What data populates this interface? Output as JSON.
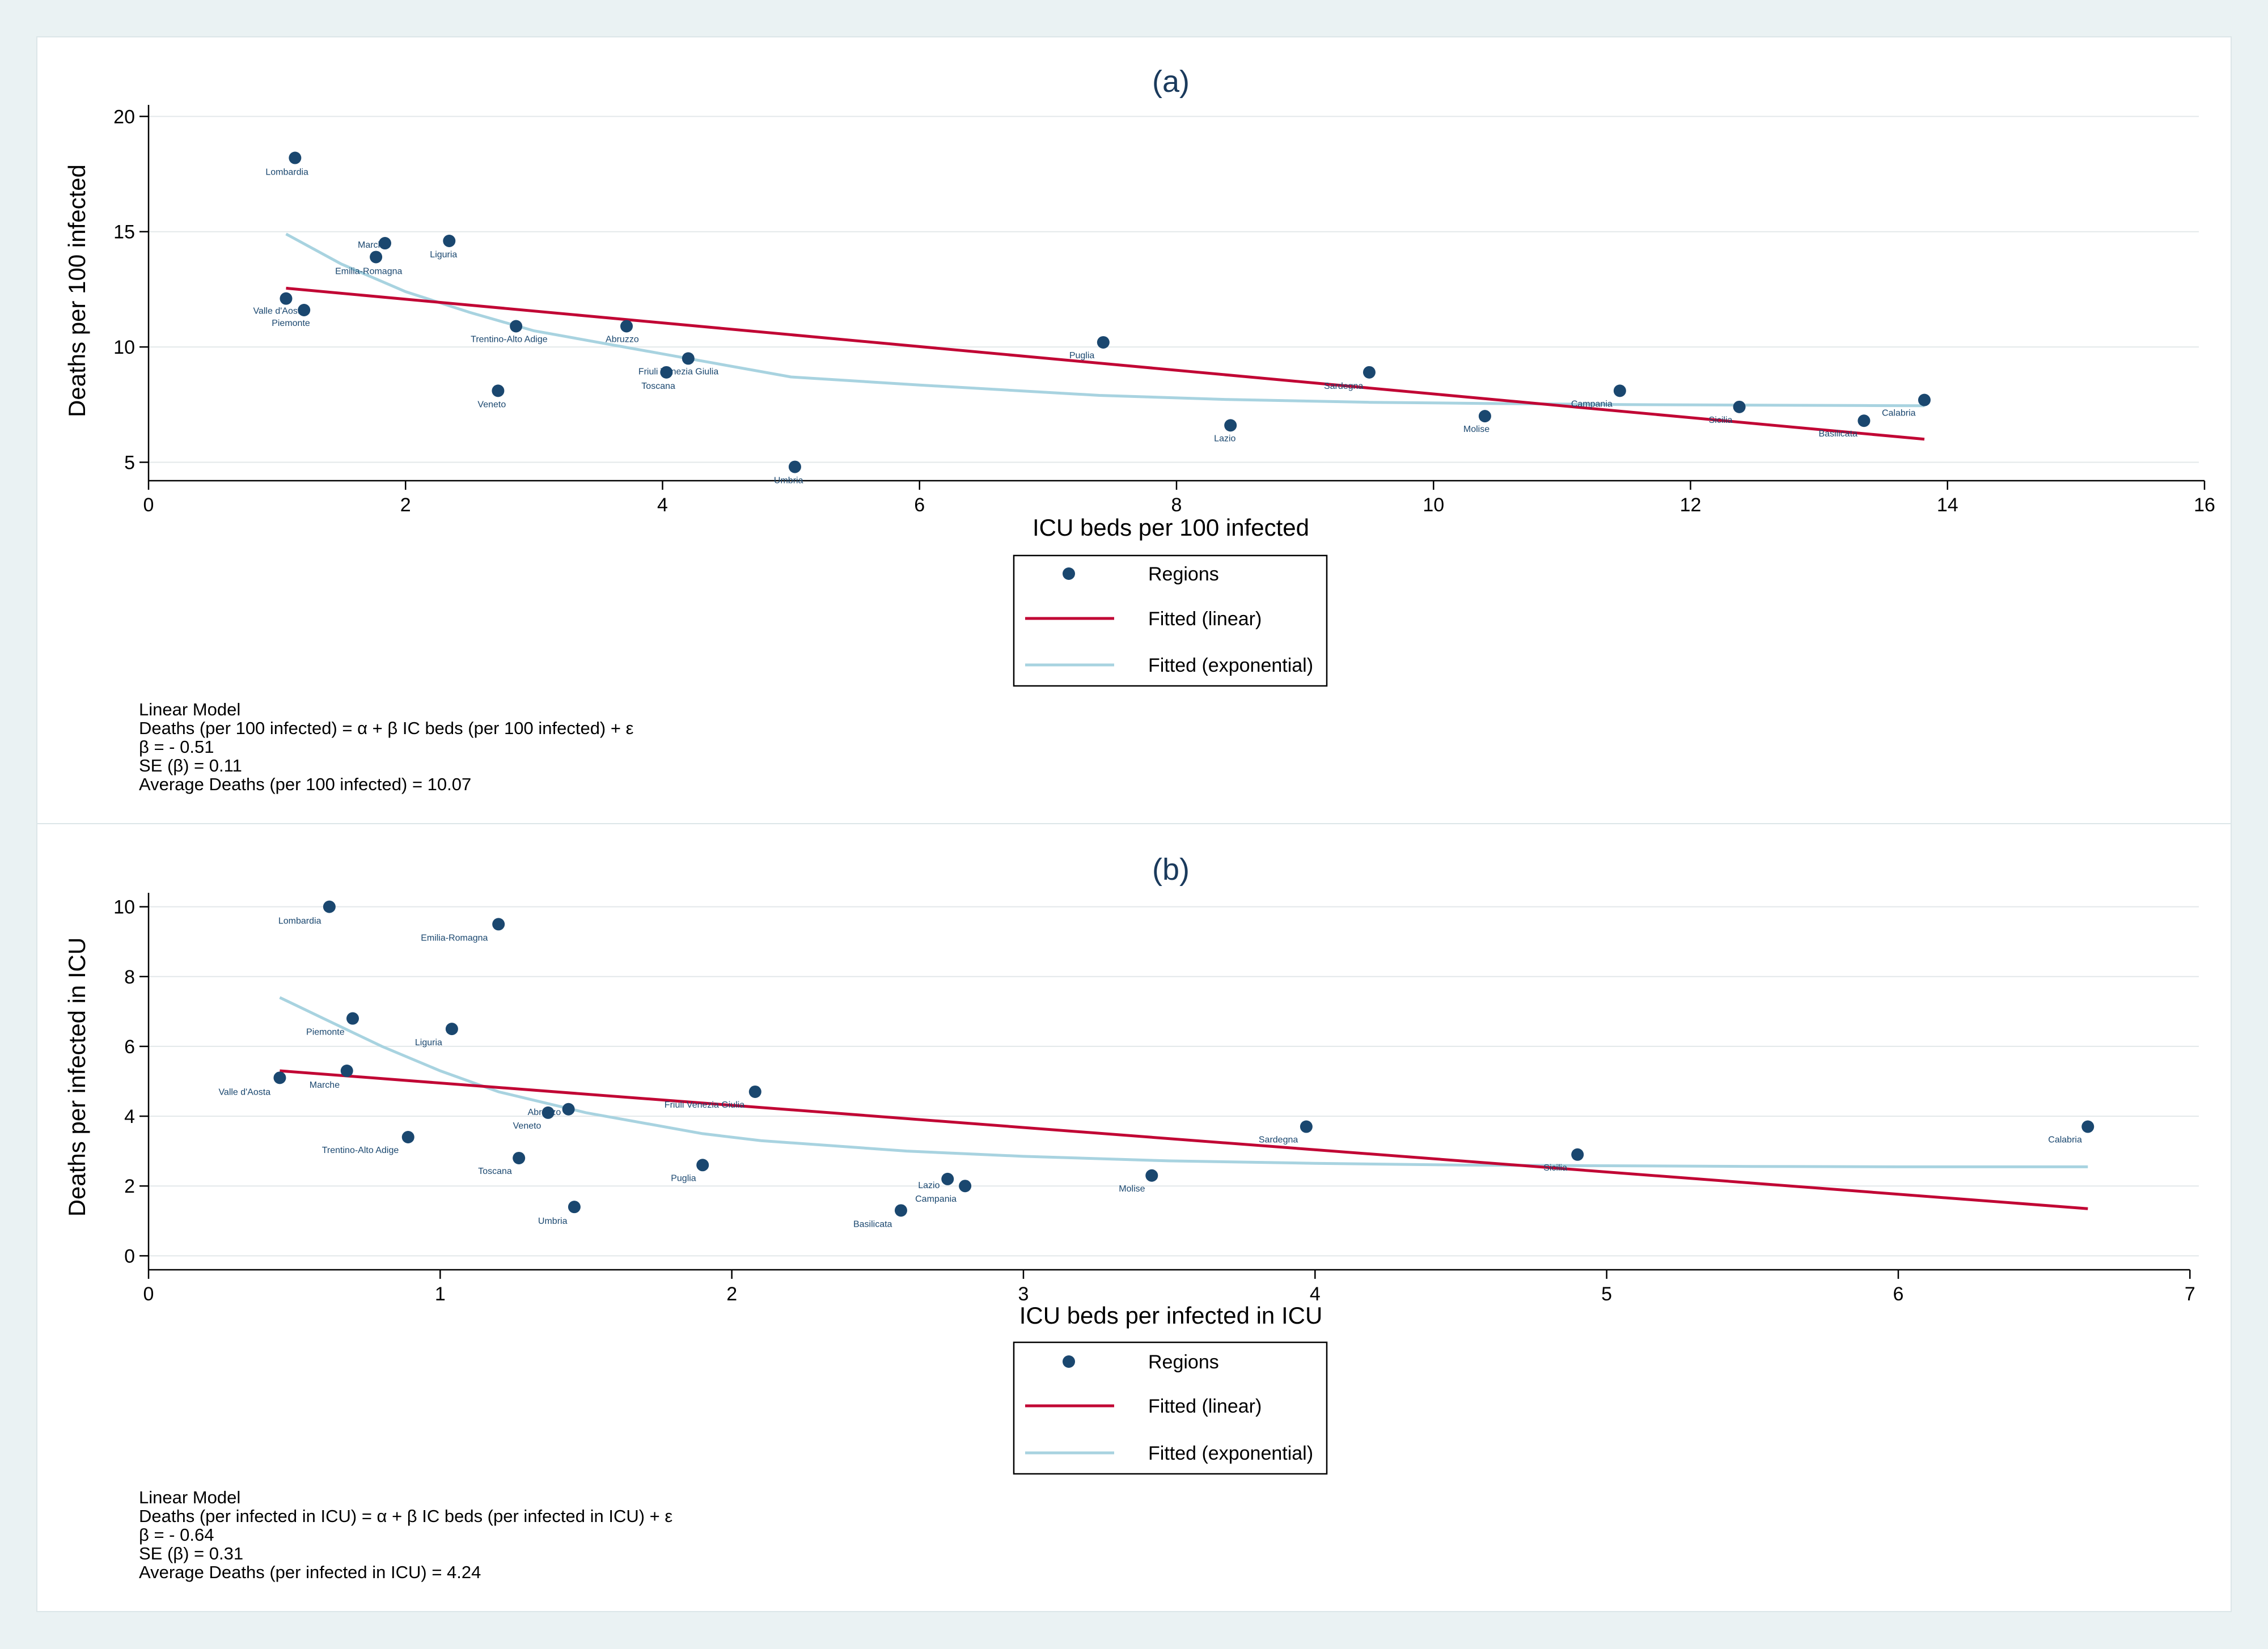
{
  "chart_data": [
    {
      "type": "scatter",
      "title": "(a)",
      "xlabel": "ICU beds per 100 infected",
      "ylabel": "Deaths per 100 infected",
      "xlim": [
        0,
        16
      ],
      "ylim": [
        4.2,
        20.5
      ],
      "xticks": [
        0,
        2,
        4,
        6,
        8,
        10,
        12,
        14,
        16
      ],
      "yticks": [
        5,
        10,
        15,
        20
      ],
      "grid": true,
      "legend_position": "below",
      "points": [
        {
          "label": "Lombardia",
          "x": 1.14,
          "y": 18.2
        },
        {
          "label": "Emilia-Romagna",
          "x": 1.77,
          "y": 13.9
        },
        {
          "label": "Marche",
          "x": 1.84,
          "y": 14.5
        },
        {
          "label": "Liguria",
          "x": 2.34,
          "y": 14.6
        },
        {
          "label": "Valle d'Aosta",
          "x": 1.07,
          "y": 12.1
        },
        {
          "label": "Piemonte",
          "x": 1.21,
          "y": 11.6
        },
        {
          "label": "Trentino-Alto Adige",
          "x": 2.86,
          "y": 10.9
        },
        {
          "label": "Abruzzo",
          "x": 3.72,
          "y": 10.9
        },
        {
          "label": "Friuli Venezia Giulia",
          "x": 4.2,
          "y": 9.5
        },
        {
          "label": "Toscana",
          "x": 4.03,
          "y": 8.9
        },
        {
          "label": "Veneto",
          "x": 2.72,
          "y": 8.1
        },
        {
          "label": "Umbria",
          "x": 5.03,
          "y": 4.8
        },
        {
          "label": "Puglia",
          "x": 7.43,
          "y": 10.2
        },
        {
          "label": "Lazio",
          "x": 8.42,
          "y": 6.6
        },
        {
          "label": "Sardegna",
          "x": 9.5,
          "y": 8.9
        },
        {
          "label": "Molise",
          "x": 10.4,
          "y": 7.0
        },
        {
          "label": "Campania",
          "x": 11.45,
          "y": 8.1
        },
        {
          "label": "Sicilia",
          "x": 12.38,
          "y": 7.4
        },
        {
          "label": "Basilicata",
          "x": 13.35,
          "y": 6.8
        },
        {
          "label": "Calabria",
          "x": 13.82,
          "y": 7.7
        }
      ],
      "series": [
        {
          "name": "Regions",
          "kind": "points"
        },
        {
          "name": "Fitted (linear)",
          "kind": "line",
          "color": "#c10534",
          "x": [
            1.07,
            13.82
          ],
          "y": [
            12.55,
            6.0
          ]
        },
        {
          "name": "Fitted (exponential)",
          "kind": "line",
          "color": "#a8d3e0",
          "x": [
            1.07,
            1.5,
            2.0,
            2.5,
            3.0,
            4.0,
            5.0,
            6.0,
            7.4,
            8.4,
            9.5,
            10.4,
            11.5,
            12.4,
            13.35,
            13.82
          ],
          "y": [
            14.9,
            13.6,
            12.4,
            11.5,
            10.7,
            9.7,
            8.7,
            8.35,
            7.9,
            7.72,
            7.6,
            7.55,
            7.5,
            7.48,
            7.46,
            7.45
          ]
        }
      ],
      "note": [
        "Linear Model",
        "Deaths (per 100 infected) = α + β IC beds (per 100 infected) + ε",
        "β =  - 0.51",
        "SE (β) = 0.11",
        "Average Deaths (per 100 infected) = 10.07"
      ]
    },
    {
      "type": "scatter",
      "title": "(b)",
      "xlabel": "ICU beds per infected in ICU",
      "ylabel": "Deaths per infected in ICU",
      "xlim": [
        0,
        7.05
      ],
      "ylim": [
        -0.4,
        10.4
      ],
      "xticks": [
        0,
        1,
        2,
        3,
        4,
        5,
        6,
        7
      ],
      "yticks": [
        0,
        2,
        4,
        6,
        8,
        10
      ],
      "grid": true,
      "legend_position": "below",
      "points": [
        {
          "label": "Lombardia",
          "x": 0.62,
          "y": 10.0
        },
        {
          "label": "Emilia-Romagna",
          "x": 1.2,
          "y": 9.5
        },
        {
          "label": "Piemonte",
          "x": 0.7,
          "y": 6.8
        },
        {
          "label": "Liguria",
          "x": 1.04,
          "y": 6.5
        },
        {
          "label": "Valle d'Aosta",
          "x": 0.45,
          "y": 5.1
        },
        {
          "label": "Marche",
          "x": 0.68,
          "y": 5.3
        },
        {
          "label": "Trentino-Alto Adige",
          "x": 0.89,
          "y": 3.4
        },
        {
          "label": "Veneto",
          "x": 1.37,
          "y": 4.1
        },
        {
          "label": "Abruzzo",
          "x": 1.44,
          "y": 4.2
        },
        {
          "label": "Toscana",
          "x": 1.27,
          "y": 2.8
        },
        {
          "label": "Umbria",
          "x": 1.46,
          "y": 1.4
        },
        {
          "label": "Friuli Venezia Giulia",
          "x": 2.08,
          "y": 4.7
        },
        {
          "label": "Puglia",
          "x": 1.9,
          "y": 2.6
        },
        {
          "label": "Basilicata",
          "x": 2.58,
          "y": 1.3
        },
        {
          "label": "Lazio",
          "x": 2.74,
          "y": 2.2
        },
        {
          "label": "Campania",
          "x": 2.8,
          "y": 2.0
        },
        {
          "label": "Molise",
          "x": 3.44,
          "y": 2.3
        },
        {
          "label": "Sardegna",
          "x": 3.97,
          "y": 3.7
        },
        {
          "label": "Sicilia",
          "x": 4.9,
          "y": 2.9
        },
        {
          "label": "Calabria",
          "x": 6.65,
          "y": 3.7
        }
      ],
      "series": [
        {
          "name": "Regions",
          "kind": "points"
        },
        {
          "name": "Fitted (linear)",
          "kind": "line",
          "color": "#c10534",
          "x": [
            0.45,
            6.65
          ],
          "y": [
            5.3,
            1.35
          ]
        },
        {
          "name": "Fitted (exponential)",
          "kind": "line",
          "color": "#a8d3e0",
          "x": [
            0.45,
            0.6,
            0.8,
            1.0,
            1.2,
            1.5,
            1.9,
            2.1,
            2.6,
            3.0,
            3.5,
            4.0,
            4.5,
            5.0,
            5.5,
            6.0,
            6.65
          ],
          "y": [
            7.4,
            6.8,
            6.0,
            5.3,
            4.7,
            4.1,
            3.5,
            3.3,
            3.0,
            2.85,
            2.72,
            2.65,
            2.6,
            2.58,
            2.56,
            2.55,
            2.55
          ]
        }
      ],
      "note": [
        "Linear Model",
        "Deaths (per infected in ICU) = α + β IC beds (per infected in ICU) + ε",
        "β =  - 0.64",
        "SE (β) = 0.31",
        "Average Deaths (per infected in ICU) = 4.24"
      ]
    }
  ]
}
